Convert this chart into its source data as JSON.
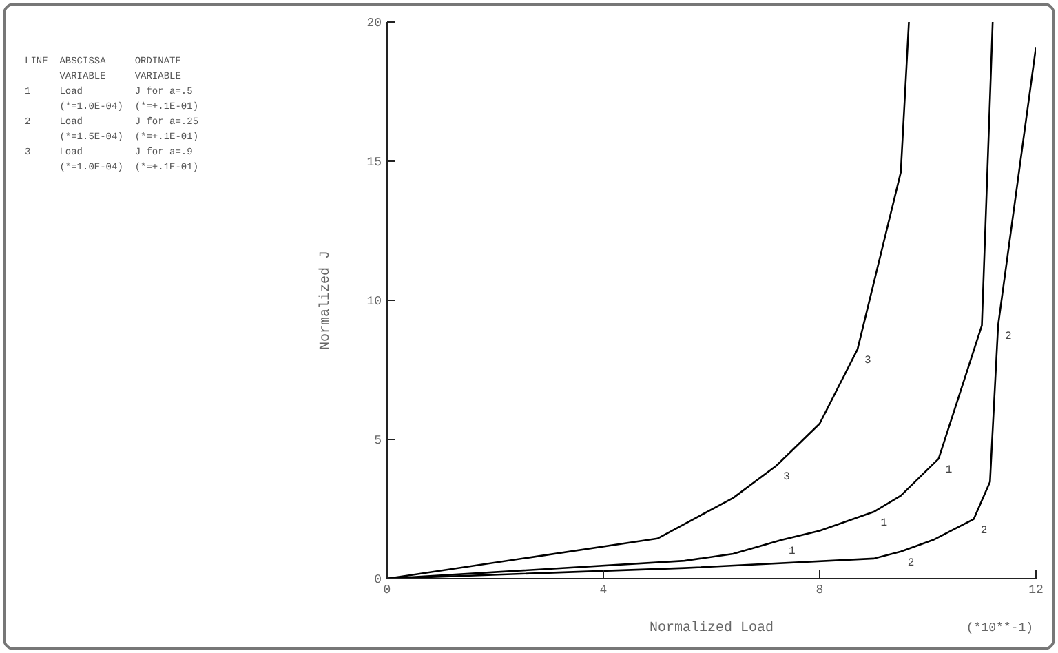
{
  "chart_data": {
    "type": "line",
    "xlabel": "Normalized Load",
    "ylabel": "Normalized J",
    "xlim": [
      0,
      12
    ],
    "xticks": [
      0,
      4,
      8,
      12
    ],
    "ylim": [
      0,
      20
    ],
    "yticks": [
      0,
      5,
      10,
      15,
      20
    ],
    "annotations": [
      "LINE  ABSCISSA     ORDINATE",
      "      VARIABLE     VARIABLE",
      "1     Load         J for a=.5",
      "      (*=1.0E-04)  (*=+.1E-01)",
      "2     Load         J for a=.25",
      "      (*=1.5E-04)  (*=+.1E-01)",
      "3     Load         J for a=.9",
      "      (*=1.0E-04)  (*=+.1E-01)",
      "(*10**-1)"
    ],
    "series": [
      {
        "name": "1",
        "color": "#000000",
        "x": [
          0,
          5.5,
          6.4,
          7.3,
          8.0,
          9.0,
          9.5,
          10.2,
          11.0,
          11.2
        ],
        "values": [
          0,
          0.64,
          0.89,
          1.39,
          1.72,
          2.4,
          2.98,
          4.31,
          9.1,
          20
        ]
      },
      {
        "name": "2",
        "color": "#000000",
        "x": [
          0,
          5.5,
          9.0,
          9.5,
          10.1,
          10.85,
          11.15,
          11.3,
          12.0
        ],
        "values": [
          0,
          0.38,
          0.72,
          0.97,
          1.39,
          2.14,
          3.48,
          9.1,
          19.1
        ]
      },
      {
        "name": "3",
        "color": "#000000",
        "x": [
          0,
          5.0,
          6.4,
          7.2,
          8.0,
          8.7,
          9.5,
          9.65
        ],
        "values": [
          0,
          1.44,
          2.9,
          4.06,
          5.57,
          8.24,
          14.6,
          20
        ]
      }
    ]
  }
}
